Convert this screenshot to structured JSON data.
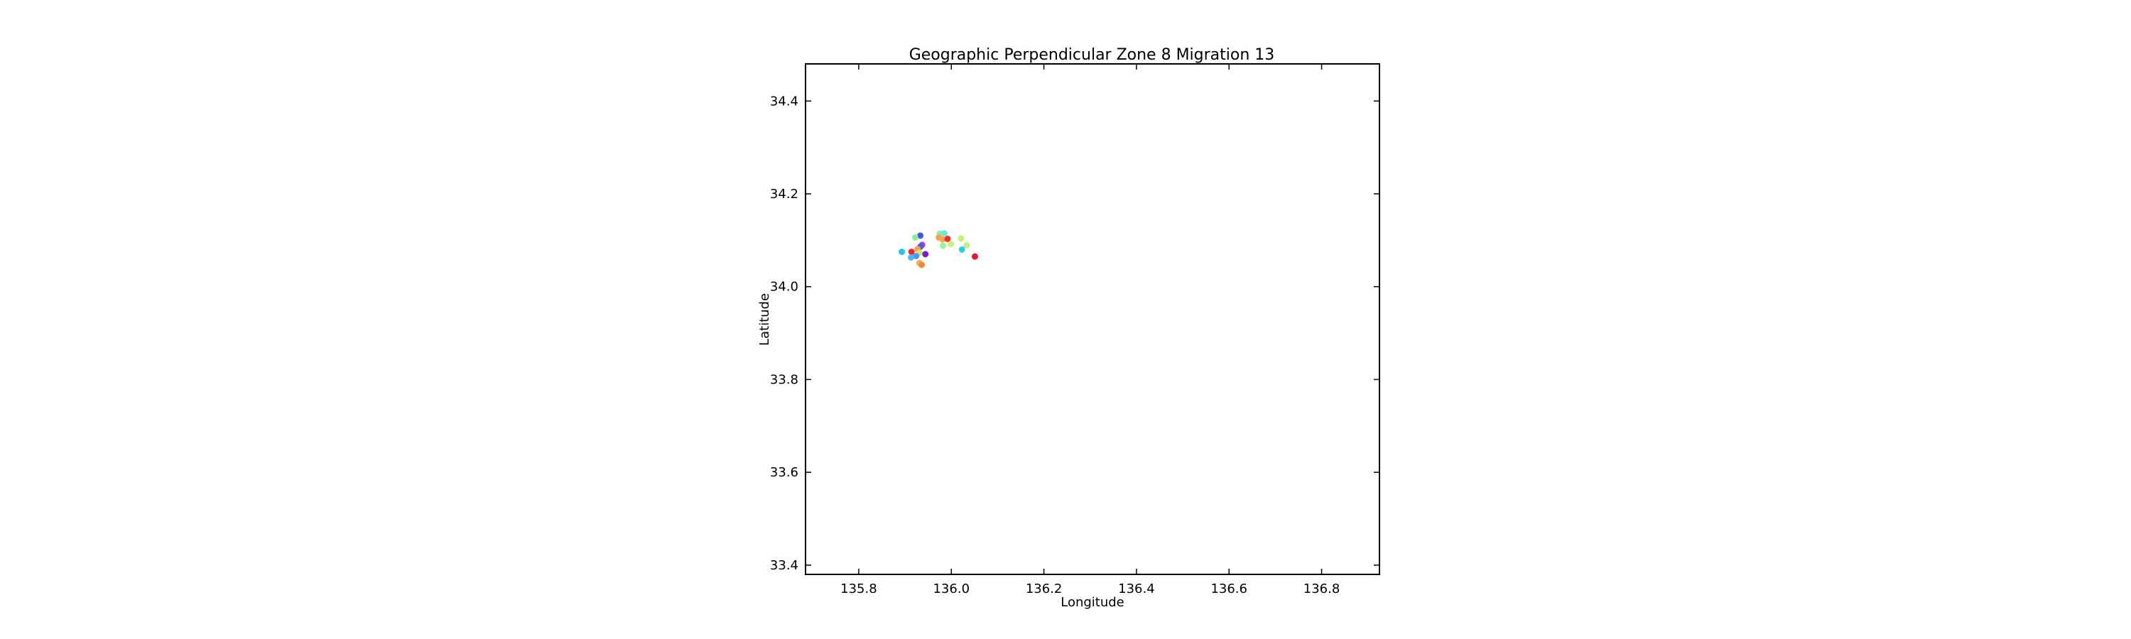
{
  "chart_data": {
    "type": "scatter",
    "title": "Geographic Perpendicular Zone 8 Migration 13",
    "xlabel": "Longitude",
    "ylabel": "Latitude",
    "xlim": [
      135.685,
      136.925
    ],
    "ylim": [
      33.38,
      34.48
    ],
    "xticks": [
      135.8,
      136.0,
      136.2,
      136.4,
      136.6,
      136.8
    ],
    "xtick_labels": [
      "135.8",
      "136.0",
      "136.2",
      "136.4",
      "136.6",
      "136.8"
    ],
    "yticks": [
      33.4,
      33.6,
      33.8,
      34.0,
      34.2,
      34.4
    ],
    "ytick_labels": [
      "33.4",
      "33.6",
      "33.8",
      "34.0",
      "34.2",
      "34.4"
    ],
    "grid": false,
    "points": [
      {
        "x": 135.933,
        "y": 34.11,
        "color": "#3f57e6"
      },
      {
        "x": 135.922,
        "y": 34.106,
        "color": "#86f0a0"
      },
      {
        "x": 135.937,
        "y": 34.09,
        "color": "#a93fd8"
      },
      {
        "x": 135.933,
        "y": 34.086,
        "color": "#3a62ea"
      },
      {
        "x": 135.927,
        "y": 34.081,
        "color": "#ff9a4c"
      },
      {
        "x": 135.893,
        "y": 34.075,
        "color": "#22c7df"
      },
      {
        "x": 135.914,
        "y": 34.075,
        "color": "#e3292a"
      },
      {
        "x": 135.931,
        "y": 34.073,
        "color": "#c6eb75"
      },
      {
        "x": 135.944,
        "y": 34.07,
        "color": "#7a1cd0"
      },
      {
        "x": 135.924,
        "y": 34.066,
        "color": "#4b99f1"
      },
      {
        "x": 135.913,
        "y": 34.063,
        "color": "#4fb7f3"
      },
      {
        "x": 135.931,
        "y": 34.051,
        "color": "#f0b35b"
      },
      {
        "x": 135.936,
        "y": 34.047,
        "color": "#f28a3c"
      },
      {
        "x": 135.975,
        "y": 34.114,
        "color": "#82f2b6"
      },
      {
        "x": 135.985,
        "y": 34.115,
        "color": "#6fe8cf"
      },
      {
        "x": 135.973,
        "y": 34.106,
        "color": "#f7a155"
      },
      {
        "x": 135.981,
        "y": 34.102,
        "color": "#ffa24a"
      },
      {
        "x": 135.992,
        "y": 34.103,
        "color": "#e8312a"
      },
      {
        "x": 136.021,
        "y": 34.104,
        "color": "#c4ef79"
      },
      {
        "x": 135.999,
        "y": 34.092,
        "color": "#c9f07c"
      },
      {
        "x": 135.982,
        "y": 34.088,
        "color": "#9bf39a"
      },
      {
        "x": 136.033,
        "y": 34.089,
        "color": "#bdf085"
      },
      {
        "x": 136.023,
        "y": 34.08,
        "color": "#2ad0e2"
      },
      {
        "x": 136.051,
        "y": 34.065,
        "color": "#e8162c"
      }
    ]
  }
}
